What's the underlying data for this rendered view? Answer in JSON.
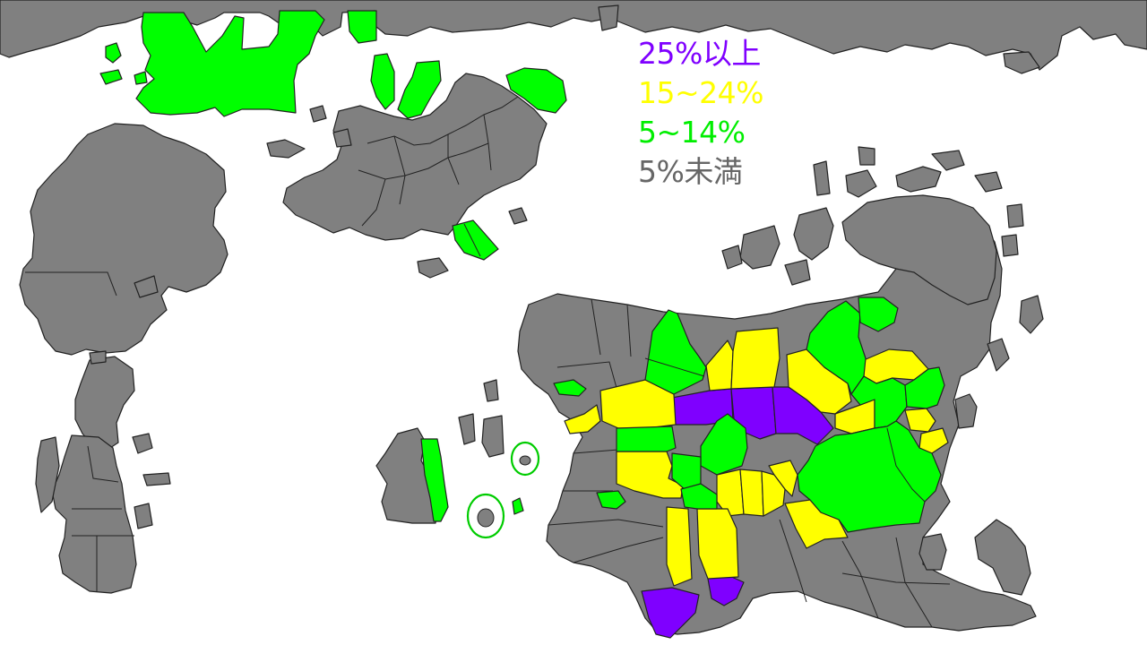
{
  "colors": {
    "ocean": "#ffffff",
    "unshaded_land": "#808080",
    "border": "#222222"
  },
  "legend": {
    "items": [
      {
        "label": "25%以上",
        "color": "#7f00ff"
      },
      {
        "label": "15~24%",
        "color": "#ffff00"
      },
      {
        "label": "5~14%",
        "color": "#00ee00"
      },
      {
        "label": "5%未満",
        "color": "#666666"
      }
    ]
  },
  "fills": {
    "high": "#7f00ff",
    "mid": "#ffff00",
    "low": "#00ff00",
    "none": "#808080"
  }
}
